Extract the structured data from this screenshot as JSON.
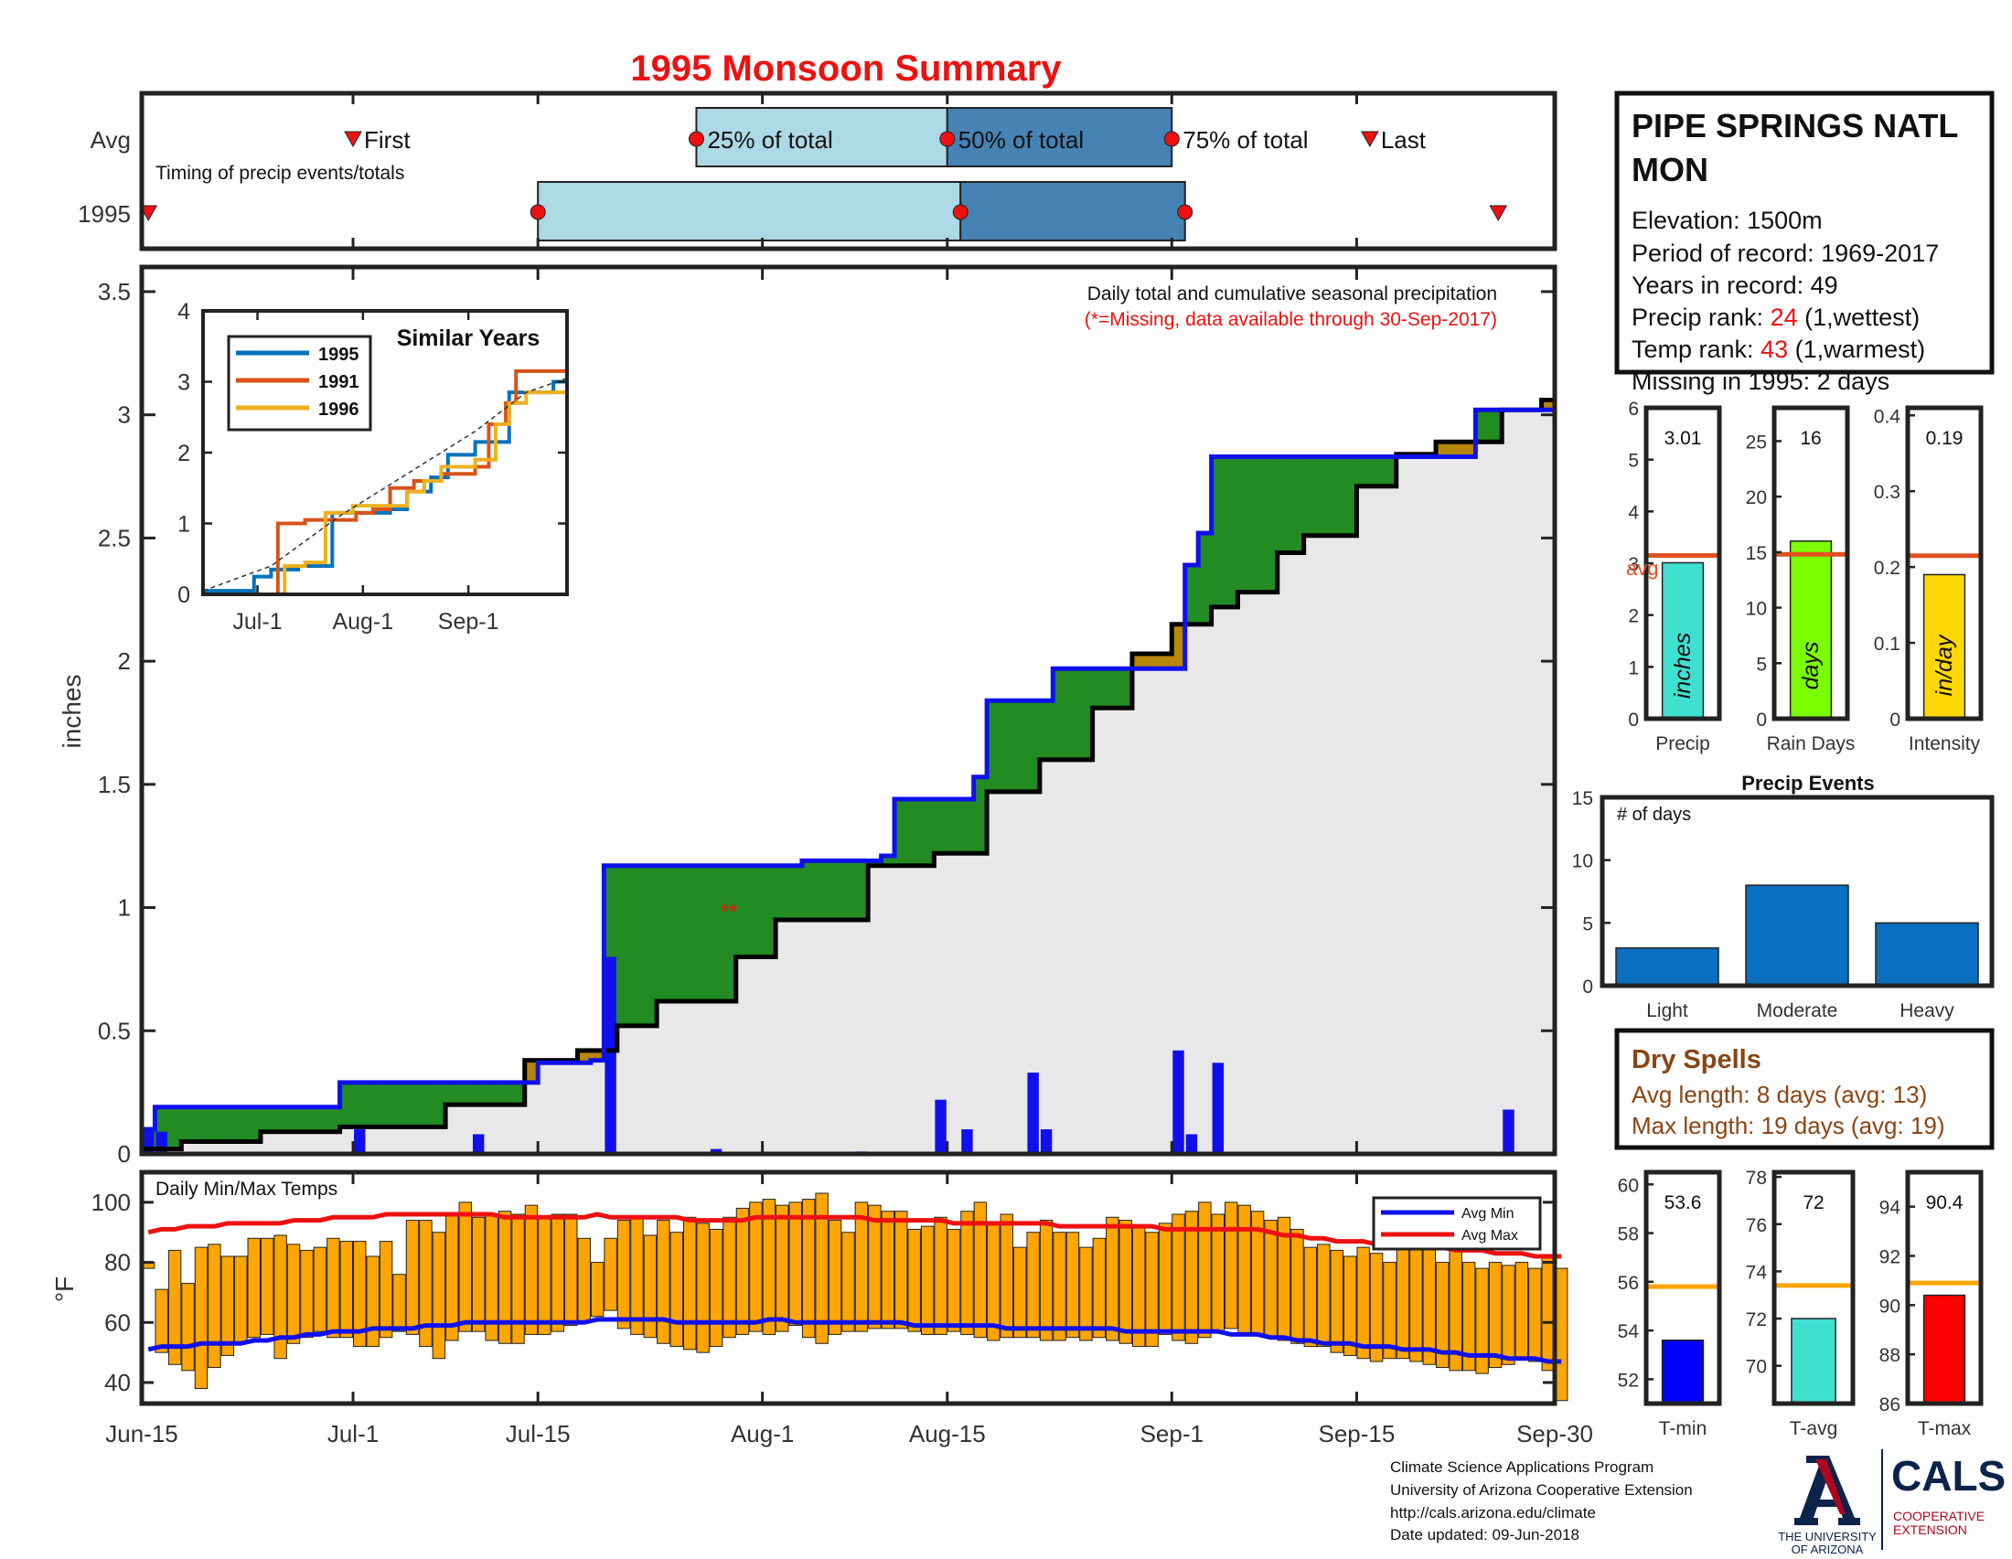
{
  "title": "1995 Monsoon Summary",
  "station": {
    "name_line1": "PIPE SPRINGS NATL",
    "name_line2": "MON",
    "elevation": "Elevation: 1500m",
    "period": "Period of record: 1969-2017",
    "years": "Years in record: 49",
    "precip_rank_label": "Precip rank: ",
    "precip_rank_value": "24",
    "precip_rank_note": " (1,wettest)",
    "temp_rank_label": "Temp rank: ",
    "temp_rank_value": "43",
    "temp_rank_note": " (1,warmest)",
    "missing": "Missing in 1995: 2 days"
  },
  "timing": {
    "row_avg": "Avg",
    "row_year": "1995",
    "subtitle": "Timing of precip events/totals",
    "first": "First",
    "last": "Last",
    "p25": "25% of total",
    "p50": "50% of total",
    "p75": "75% of total",
    "avg_days": {
      "first": 16,
      "p25": 42,
      "p50": 61,
      "p75": 78,
      "last": 93
    },
    "year_days": {
      "first": 0.5,
      "p25": 30,
      "p50": 62,
      "p75": 79,
      "last": 103
    }
  },
  "main": {
    "ylabel": "inches",
    "header": "Daily total and cumulative seasonal precipitation",
    "missing_note": "(*=Missing, data available through 30-Sep-2017)",
    "missing_marker": "**",
    "x_ticks": [
      "Jun-15",
      "Jul-1",
      "Jul-15",
      "Aug-1",
      "Aug-15",
      "Sep-1",
      "Sep-15",
      "Sep-30"
    ],
    "y_ticks": [
      "0",
      "0.5",
      "1",
      "1.5",
      "2",
      "2.5",
      "3",
      "3.5"
    ]
  },
  "inset": {
    "title": "Similar Years",
    "legend": [
      "1995",
      "1991",
      "1996"
    ],
    "x_ticks": [
      "Jul-1",
      "Aug-1",
      "Sep-1"
    ],
    "y_ticks": [
      "0",
      "1",
      "2",
      "3",
      "4"
    ]
  },
  "stats": {
    "precip_value": "3.01",
    "precip_unit": "inches",
    "precip_label": "Precip",
    "avg_label": "avg",
    "raindays_value": "16",
    "raindays_unit": "days",
    "raindays_label": "Rain Days",
    "intensity_value": "0.19",
    "intensity_unit": "in/day",
    "intensity_label": "Intensity",
    "precip_ticks": [
      "0",
      "1",
      "2",
      "3",
      "4",
      "5",
      "6"
    ],
    "raindays_ticks": [
      "0",
      "5",
      "10",
      "15",
      "20",
      "25"
    ],
    "intensity_ticks": [
      "0",
      "0.1",
      "0.2",
      "0.3",
      "0.4"
    ]
  },
  "events": {
    "title": "Precip Events",
    "ylabel": "# of days",
    "y_ticks": [
      "0",
      "5",
      "10",
      "15"
    ]
  },
  "dry": {
    "title": "Dry Spells",
    "avg": "Avg length: 8 days (avg: 13)",
    "max": "Max length: 19 days (avg: 19)"
  },
  "temps": {
    "title": "Daily Min/Max Temps",
    "ylabel": "°F",
    "legend_min": "Avg Min",
    "legend_max": "Avg Max",
    "y_ticks": [
      "40",
      "60",
      "80",
      "100"
    ]
  },
  "temp_stats": {
    "tmin_value": "53.6",
    "tmin_label": "T-min",
    "tavg_value": "72",
    "tavg_label": "T-avg",
    "tmax_value": "90.4",
    "tmax_label": "T-max",
    "tmin_ticks": [
      "52",
      "54",
      "56",
      "58",
      "60"
    ],
    "tavg_ticks": [
      "70",
      "72",
      "74",
      "76",
      "78"
    ],
    "tmax_ticks": [
      "86",
      "88",
      "90",
      "92",
      "94"
    ]
  },
  "footer": {
    "line1": "Climate Science Applications Program",
    "line2": "University of Arizona Cooperative Extension",
    "line3": "http://cals.arizona.edu/climate",
    "line4": " Date updated: 09-Jun-2018",
    "ua_line1": "THE UNIVERSITY",
    "ua_line2": "OF ARIZONA",
    "cals": "CALS",
    "cals_sub1": "COOPERATIVE",
    "cals_sub2": "EXTENSION"
  },
  "colors": {
    "title": "#ee1111",
    "rank": "#ee1111",
    "dry": "#8b4513",
    "observed": "#000000",
    "average": "#1010ee",
    "deficit_fill": "#228b22",
    "surplus_fill": "#b8860b",
    "daily_bar": "#1010ee",
    "temp_bar": "#ffa500",
    "avg_max": "#ee1111",
    "avg_min": "#1010ee",
    "precip_bar": "#40e0d0",
    "raindays_bar": "#7cfc00",
    "intensity_bar": "#ffd700",
    "tmin_bar": "#0000ff",
    "tavg_bar": "#40e0d0",
    "tmax_bar": "#ff0000",
    "avg_line": "#e05020",
    "temp_avg_line": "#ffa500",
    "event_bar": "#0b6fbf",
    "timing_light": "#add8e6",
    "timing_dark": "#4682b4",
    "marker": "#ee1111",
    "logo_navy": "#0c234b",
    "logo_red": "#ab0520"
  },
  "chart_data": [
    {
      "type": "line",
      "title": "Daily total and cumulative seasonal precipitation",
      "xlabel": "",
      "ylabel": "inches",
      "x_range": [
        "Jun-15",
        "Sep-30"
      ],
      "ylim": [
        0,
        3.6
      ],
      "series": [
        {
          "name": "1995",
          "kind": "cumulative (observed)",
          "x": [
            0,
            3,
            9,
            15,
            23,
            29,
            33,
            36,
            39,
            45,
            48,
            55,
            60,
            64,
            68,
            72,
            75,
            78,
            81,
            83,
            86,
            88,
            92,
            95,
            98,
            103,
            106,
            107
          ],
          "y": [
            0.02,
            0.05,
            0.09,
            0.11,
            0.2,
            0.38,
            0.42,
            0.52,
            0.62,
            0.8,
            0.95,
            1.17,
            1.22,
            1.47,
            1.6,
            1.81,
            2.03,
            2.15,
            2.22,
            2.28,
            2.44,
            2.51,
            2.71,
            2.84,
            2.89,
            3.02,
            3.06,
            3.1
          ]
        },
        {
          "name": "Average",
          "kind": "cumulative (average)",
          "x": [
            0,
            1,
            15,
            30,
            34,
            35,
            50,
            56,
            57,
            63,
            64,
            69,
            70,
            78,
            79,
            80,
            81,
            100,
            101,
            107
          ],
          "y": [
            0.1,
            0.19,
            0.29,
            0.37,
            0.38,
            1.17,
            1.19,
            1.21,
            1.44,
            1.53,
            1.84,
            1.97,
            1.97,
            1.97,
            2.39,
            2.52,
            2.83,
            2.83,
            3.02,
            3.02
          ]
        },
        {
          "name": "Daily precip",
          "kind": "bar",
          "x": [
            0,
            1,
            16,
            25,
            35,
            43,
            54,
            60,
            62,
            67,
            68,
            78,
            79,
            81,
            103
          ],
          "y": [
            0.1,
            0.09,
            0.1,
            0.08,
            0.8,
            0.02,
            0.01,
            0.22,
            0.1,
            0.33,
            0.1,
            0.42,
            0.08,
            0.37,
            0.18
          ]
        }
      ],
      "missing_days": [
        47,
        48
      ]
    },
    {
      "type": "line",
      "title": "Similar Years",
      "x_ticks": [
        "Jul-1",
        "Aug-1",
        "Sep-1"
      ],
      "ylim": [
        0,
        4
      ],
      "series": [
        {
          "name": "1995",
          "x": [
            0,
            15,
            20,
            28,
            38,
            45,
            55,
            60,
            67,
            72,
            80,
            90,
            103,
            107
          ],
          "y": [
            0.05,
            0.25,
            0.35,
            0.4,
            1.15,
            1.15,
            1.2,
            1.45,
            1.65,
            1.97,
            2.15,
            2.85,
            3.0,
            3.1
          ]
        },
        {
          "name": "1991",
          "x": [
            0,
            18,
            22,
            30,
            38,
            45,
            50,
            55,
            62,
            70,
            80,
            84,
            89,
            92,
            107
          ],
          "y": [
            0.0,
            0.0,
            1.0,
            1.05,
            1.05,
            1.15,
            1.2,
            1.5,
            1.6,
            1.7,
            1.8,
            2.4,
            2.7,
            3.15,
            3.2
          ]
        },
        {
          "name": "1996",
          "x": [
            0,
            20,
            24,
            30,
            36,
            44,
            60,
            65,
            70,
            80,
            86,
            90,
            95,
            107
          ],
          "y": [
            0.0,
            0.0,
            0.4,
            0.45,
            1.15,
            1.25,
            1.45,
            1.6,
            1.8,
            1.9,
            2.4,
            2.7,
            2.85,
            2.9
          ]
        },
        {
          "name": "Average",
          "x": [
            0,
            20,
            40,
            60,
            80,
            95,
            107
          ],
          "y": [
            0.05,
            0.4,
            1.1,
            1.7,
            2.3,
            2.85,
            3.05
          ]
        }
      ]
    },
    {
      "type": "bar",
      "title": "Precip",
      "categories": [
        "Precip"
      ],
      "values": [
        3.01
      ],
      "average": 3.15,
      "ylim": [
        0,
        6
      ]
    },
    {
      "type": "bar",
      "title": "Rain Days",
      "categories": [
        "Rain Days"
      ],
      "values": [
        16
      ],
      "average": 14.8,
      "ylim": [
        0,
        28
      ]
    },
    {
      "type": "bar",
      "title": "Intensity",
      "categories": [
        "Intensity"
      ],
      "values": [
        0.19
      ],
      "average": 0.215,
      "ylim": [
        0,
        0.41
      ]
    },
    {
      "type": "bar",
      "title": "Precip Events",
      "ylabel": "# of days",
      "categories": [
        "Light",
        "Moderate",
        "Heavy"
      ],
      "values": [
        3,
        8,
        5
      ],
      "ylim": [
        0,
        15
      ]
    },
    {
      "type": "bar",
      "title": "Daily Min/Max Temps",
      "ylabel": "°F",
      "ylim": [
        33,
        110
      ],
      "min": [
        78,
        50,
        46,
        44,
        38,
        45,
        49,
        53,
        55,
        56,
        48,
        53,
        55,
        57,
        55,
        55,
        52,
        52,
        55,
        57,
        56,
        52,
        48,
        54,
        57,
        57,
        54,
        53,
        53,
        56,
        56,
        57,
        59,
        60,
        62,
        64,
        58,
        56,
        55,
        53,
        52,
        51,
        50,
        52,
        55,
        56,
        57,
        56,
        57,
        59,
        55,
        53,
        56,
        57,
        57,
        58,
        58,
        58,
        57,
        56,
        56,
        57,
        56,
        55,
        54,
        55,
        55,
        55,
        54,
        54,
        55,
        54,
        55,
        54,
        53,
        52,
        52,
        56,
        54,
        53,
        55,
        57,
        58,
        56,
        56,
        55,
        54,
        53,
        52,
        52,
        50,
        49,
        48,
        47,
        48,
        48,
        47,
        46,
        45,
        44,
        44,
        43,
        45,
        46,
        48,
        47,
        44,
        34
      ],
      "max": [
        80,
        71,
        84,
        73,
        85,
        86,
        82,
        82,
        88,
        88,
        89,
        86,
        84,
        85,
        88,
        87,
        87,
        82,
        87,
        76,
        94,
        94,
        90,
        96,
        100,
        95,
        96,
        97,
        96,
        99,
        95,
        96,
        96,
        88,
        80,
        88,
        94,
        95,
        89,
        94,
        90,
        95,
        93,
        91,
        95,
        98,
        100,
        101,
        99,
        100,
        101,
        103,
        94,
        90,
        100,
        99,
        97,
        97,
        91,
        92,
        95,
        91,
        97,
        100,
        93,
        96,
        85,
        90,
        94,
        90,
        90,
        85,
        88,
        95,
        94,
        92,
        90,
        93,
        96,
        97,
        100,
        96,
        100,
        99,
        97,
        94,
        95,
        91,
        85,
        86,
        84,
        82,
        85,
        83,
        80,
        86,
        85,
        86,
        80,
        84,
        80,
        78,
        80,
        79,
        80,
        78,
        82,
        78
      ],
      "avg_max": [
        90,
        91,
        91,
        92,
        92,
        92,
        93,
        93,
        93,
        93,
        93,
        94,
        94,
        94,
        95,
        95,
        95,
        95,
        96,
        96,
        96,
        96,
        96,
        96,
        96,
        96,
        96,
        95,
        95,
        95,
        95,
        95,
        95,
        95,
        96,
        95,
        95,
        95,
        95,
        95,
        95,
        94,
        94,
        94,
        94,
        94,
        95,
        95,
        95,
        95,
        95,
        95,
        95,
        95,
        95,
        94,
        94,
        94,
        94,
        94,
        94,
        93,
        93,
        93,
        93,
        93,
        93,
        93,
        93,
        92,
        92,
        92,
        92,
        92,
        92,
        92,
        92,
        91,
        91,
        91,
        91,
        91,
        91,
        91,
        91,
        90,
        89,
        89,
        88,
        88,
        87,
        87,
        87,
        86,
        86,
        86,
        85,
        85,
        85,
        84,
        84,
        84,
        83,
        83,
        83,
        82,
        82,
        82
      ],
      "avg_min": [
        51,
        52,
        52,
        52,
        53,
        53,
        53,
        53,
        54,
        54,
        55,
        55,
        56,
        56,
        57,
        57,
        57,
        58,
        58,
        58,
        58,
        59,
        59,
        59,
        60,
        60,
        60,
        60,
        60,
        60,
        60,
        60,
        60,
        60,
        61,
        61,
        61,
        61,
        61,
        61,
        60,
        60,
        60,
        60,
        60,
        60,
        60,
        61,
        61,
        60,
        60,
        60,
        60,
        60,
        60,
        60,
        60,
        60,
        59,
        59,
        59,
        59,
        59,
        59,
        59,
        58,
        58,
        58,
        58,
        58,
        58,
        58,
        58,
        58,
        57,
        57,
        57,
        57,
        57,
        57,
        57,
        57,
        56,
        56,
        56,
        55,
        55,
        54,
        54,
        53,
        53,
        53,
        52,
        52,
        52,
        51,
        51,
        51,
        50,
        50,
        49,
        49,
        49,
        48,
        48,
        48,
        47,
        47
      ]
    },
    {
      "type": "bar",
      "title": "T-min",
      "categories": [
        "T-min"
      ],
      "values": [
        53.6
      ],
      "average": 55.8,
      "ylim": [
        51,
        60.5
      ]
    },
    {
      "type": "bar",
      "title": "T-avg",
      "categories": [
        "T-avg"
      ],
      "values": [
        72
      ],
      "average": 73.4,
      "ylim": [
        68.4,
        78.2
      ]
    },
    {
      "type": "bar",
      "title": "T-max",
      "categories": [
        "T-max"
      ],
      "values": [
        90.4
      ],
      "average": 90.9,
      "ylim": [
        86,
        95.4
      ]
    }
  ]
}
